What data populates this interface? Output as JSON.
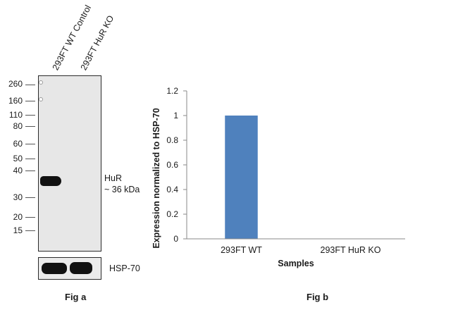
{
  "fig_a": {
    "lane_labels": [
      "293FT WT Control",
      "293FT HuR KO"
    ],
    "mw_markers": [
      "260",
      "160",
      "110",
      "80",
      "60",
      "50",
      "40",
      "30",
      "20",
      "15"
    ],
    "band_label_line1": "HuR",
    "band_label_line2": "~ 36 kDa",
    "loading_control_label": "HSP-70",
    "caption": "Fig a"
  },
  "fig_b": {
    "caption": "Fig b"
  },
  "chart_data": {
    "type": "bar",
    "categories": [
      "293FT WT",
      "293FT HuR KO"
    ],
    "values": [
      1,
      0
    ],
    "ylim": [
      0,
      1.2
    ],
    "yticks": [
      "0",
      "0.2",
      "0.4",
      "0.6",
      "0.8",
      "1",
      "1.2"
    ],
    "ylabel": "Expression  normalized to HSP-70",
    "xlabel": "Samples",
    "bar_color": "#4f81bd",
    "grid": false
  }
}
